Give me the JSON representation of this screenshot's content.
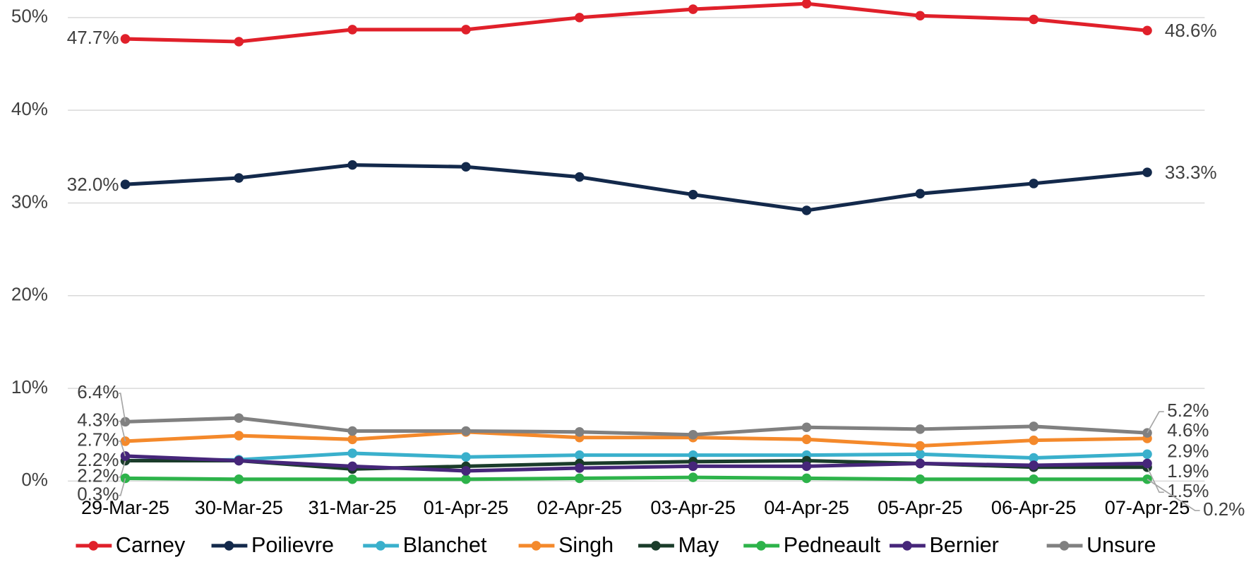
{
  "chart_data": {
    "type": "line",
    "categories": [
      "29-Mar-25",
      "30-Mar-25",
      "31-Mar-25",
      "01-Apr-25",
      "02-Apr-25",
      "03-Apr-25",
      "04-Apr-25",
      "05-Apr-25",
      "06-Apr-25",
      "07-Apr-25"
    ],
    "series": [
      {
        "name": "Carney",
        "color": "#e0202a",
        "values": [
          47.7,
          47.4,
          48.7,
          48.7,
          50.0,
          50.9,
          51.5,
          50.2,
          49.8,
          48.6
        ],
        "value_labels": [
          "47.7%",
          null,
          null,
          null,
          null,
          null,
          null,
          null,
          null,
          "48.6%"
        ]
      },
      {
        "name": "Poilievre",
        "color": "#13294b",
        "values": [
          32.0,
          32.7,
          34.1,
          33.9,
          32.8,
          30.9,
          29.2,
          31.0,
          32.1,
          33.3
        ],
        "value_labels": [
          "32.0%",
          null,
          null,
          null,
          null,
          null,
          null,
          null,
          null,
          "33.3%"
        ]
      },
      {
        "name": "Blanchet",
        "color": "#3ab0cc",
        "values": [
          2.2,
          2.3,
          3.0,
          2.6,
          2.8,
          2.8,
          2.8,
          2.9,
          2.5,
          2.9
        ],
        "value_labels": [
          "2.2%",
          null,
          null,
          null,
          null,
          null,
          null,
          null,
          null,
          "2.9%"
        ]
      },
      {
        "name": "Singh",
        "color": "#f4892b",
        "values": [
          4.3,
          4.9,
          4.5,
          5.3,
          4.7,
          4.7,
          4.5,
          3.8,
          4.4,
          4.6
        ],
        "value_labels": [
          "4.3%",
          null,
          null,
          null,
          null,
          null,
          null,
          null,
          null,
          "4.6%"
        ]
      },
      {
        "name": "May",
        "color": "#1a3c2a",
        "values": [
          2.2,
          2.2,
          1.3,
          1.6,
          1.9,
          2.1,
          2.2,
          1.9,
          1.5,
          1.5
        ],
        "value_labels": [
          "2.2%",
          null,
          null,
          null,
          null,
          null,
          null,
          null,
          null,
          "1.5%"
        ]
      },
      {
        "name": "Pedneault",
        "color": "#2db34a",
        "values": [
          0.3,
          0.2,
          0.2,
          0.2,
          0.3,
          0.4,
          0.3,
          0.2,
          0.2,
          0.2
        ],
        "value_labels": [
          "0.3%",
          null,
          null,
          null,
          null,
          null,
          null,
          null,
          null,
          "0.2%"
        ]
      },
      {
        "name": "Bernier",
        "color": "#46267a",
        "values": [
          2.7,
          2.2,
          1.6,
          1.1,
          1.4,
          1.6,
          1.6,
          1.9,
          1.7,
          1.9
        ],
        "value_labels": [
          "2.7%",
          null,
          null,
          null,
          null,
          null,
          null,
          null,
          null,
          "1.9%"
        ]
      },
      {
        "name": "Unsure",
        "color": "#808080",
        "values": [
          6.4,
          6.8,
          5.4,
          5.4,
          5.3,
          5.0,
          5.8,
          5.6,
          5.9,
          5.2
        ],
        "value_labels": [
          "6.4%",
          null,
          null,
          null,
          null,
          null,
          null,
          null,
          null,
          "5.2%"
        ]
      }
    ],
    "ylim": [
      0,
      52
    ],
    "yticks": [
      {
        "value": 0,
        "label": "0%"
      },
      {
        "value": 10,
        "label": "10%"
      },
      {
        "value": 20,
        "label": "20%"
      },
      {
        "value": 30,
        "label": "30%"
      },
      {
        "value": 40,
        "label": "40%"
      },
      {
        "value": 50,
        "label": "50%"
      }
    ],
    "grid": true,
    "legend": "bottom"
  }
}
